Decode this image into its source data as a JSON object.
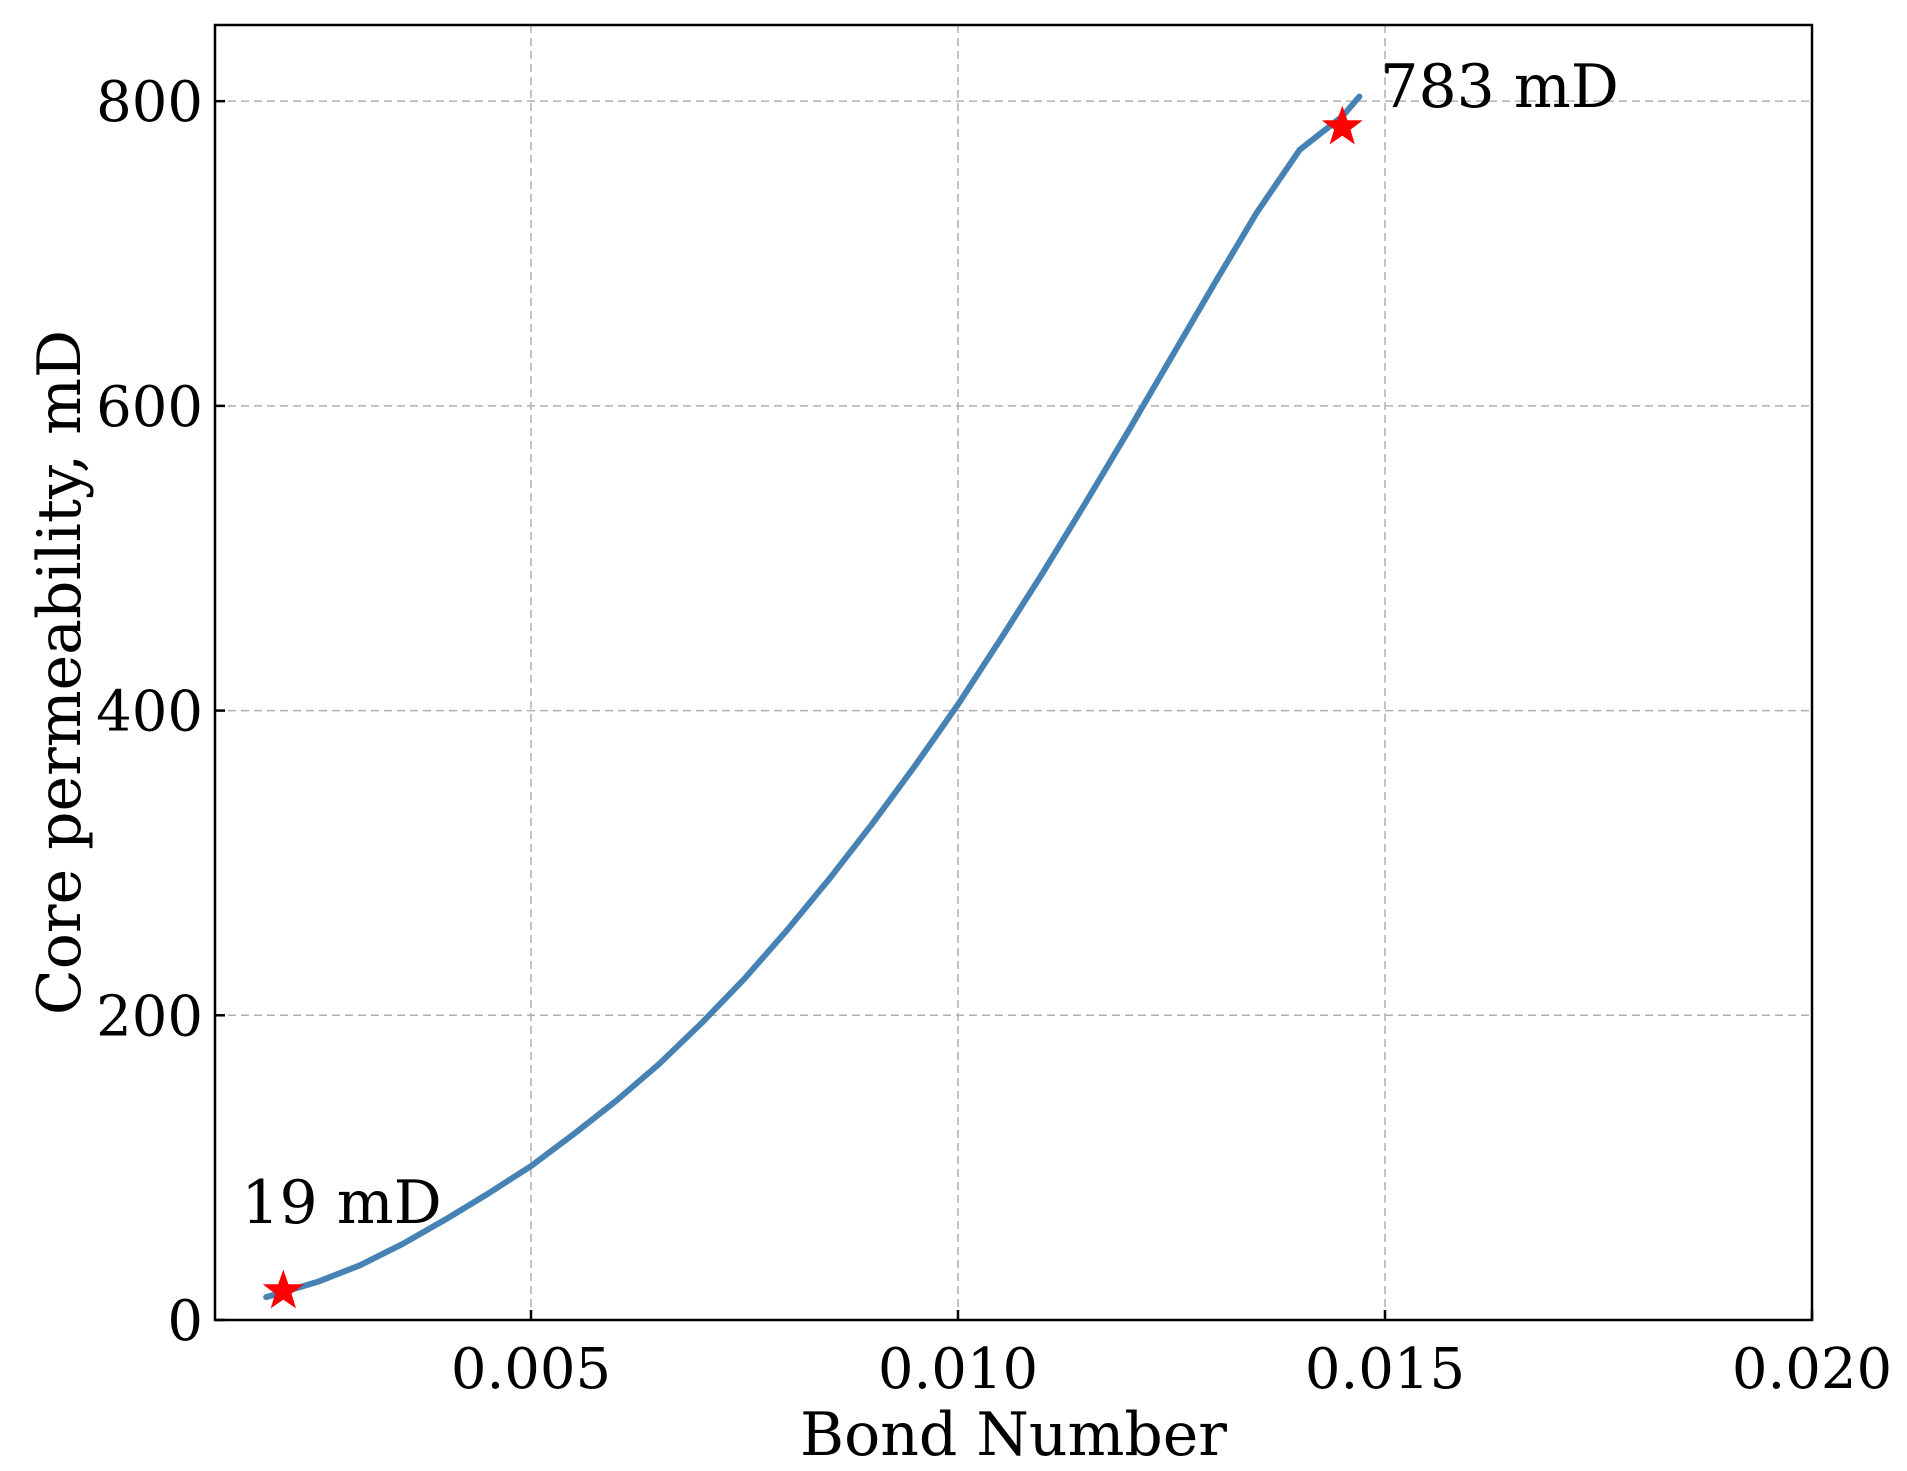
{
  "chart_data": {
    "type": "line",
    "title": "",
    "xlabel": "Bond Number",
    "ylabel": "Core permeability, mD",
    "xlim": [
      0.0013,
      0.02
    ],
    "ylim": [
      0,
      850
    ],
    "xticks": [
      0.005,
      0.01,
      0.015,
      0.02
    ],
    "xtick_labels": [
      "0.005",
      "0.010",
      "0.015",
      "0.020"
    ],
    "yticks": [
      0,
      200,
      400,
      600,
      800
    ],
    "ytick_labels": [
      "0",
      "200",
      "400",
      "600",
      "800"
    ],
    "grid": true,
    "series": [
      {
        "type": "line",
        "color": "#4682b4",
        "x": [
          0.0019,
          0.0025,
          0.003,
          0.0035,
          0.004,
          0.0045,
          0.005,
          0.0055,
          0.006,
          0.0065,
          0.007,
          0.0075,
          0.008,
          0.0085,
          0.009,
          0.0095,
          0.01,
          0.0105,
          0.011,
          0.0115,
          0.012,
          0.0125,
          0.013,
          0.0135,
          0.014,
          0.0145,
          0.0147
        ],
        "y": [
          15,
          25,
          36,
          50,
          66,
          83,
          101,
          122,
          144,
          168,
          195,
          224,
          256,
          290,
          326,
          364,
          404,
          447,
          491,
          537,
          584,
          632,
          680,
          727,
          768,
          790,
          803
        ]
      },
      {
        "type": "scatter",
        "marker": "star",
        "color": "#ff0000",
        "x": [
          0.0021,
          0.0145
        ],
        "y": [
          19,
          783
        ]
      }
    ],
    "annotations": [
      {
        "text": "19 mD",
        "x": 0.0021,
        "y": 19
      },
      {
        "text": "783 mD",
        "x": 0.0145,
        "y": 783
      }
    ]
  }
}
